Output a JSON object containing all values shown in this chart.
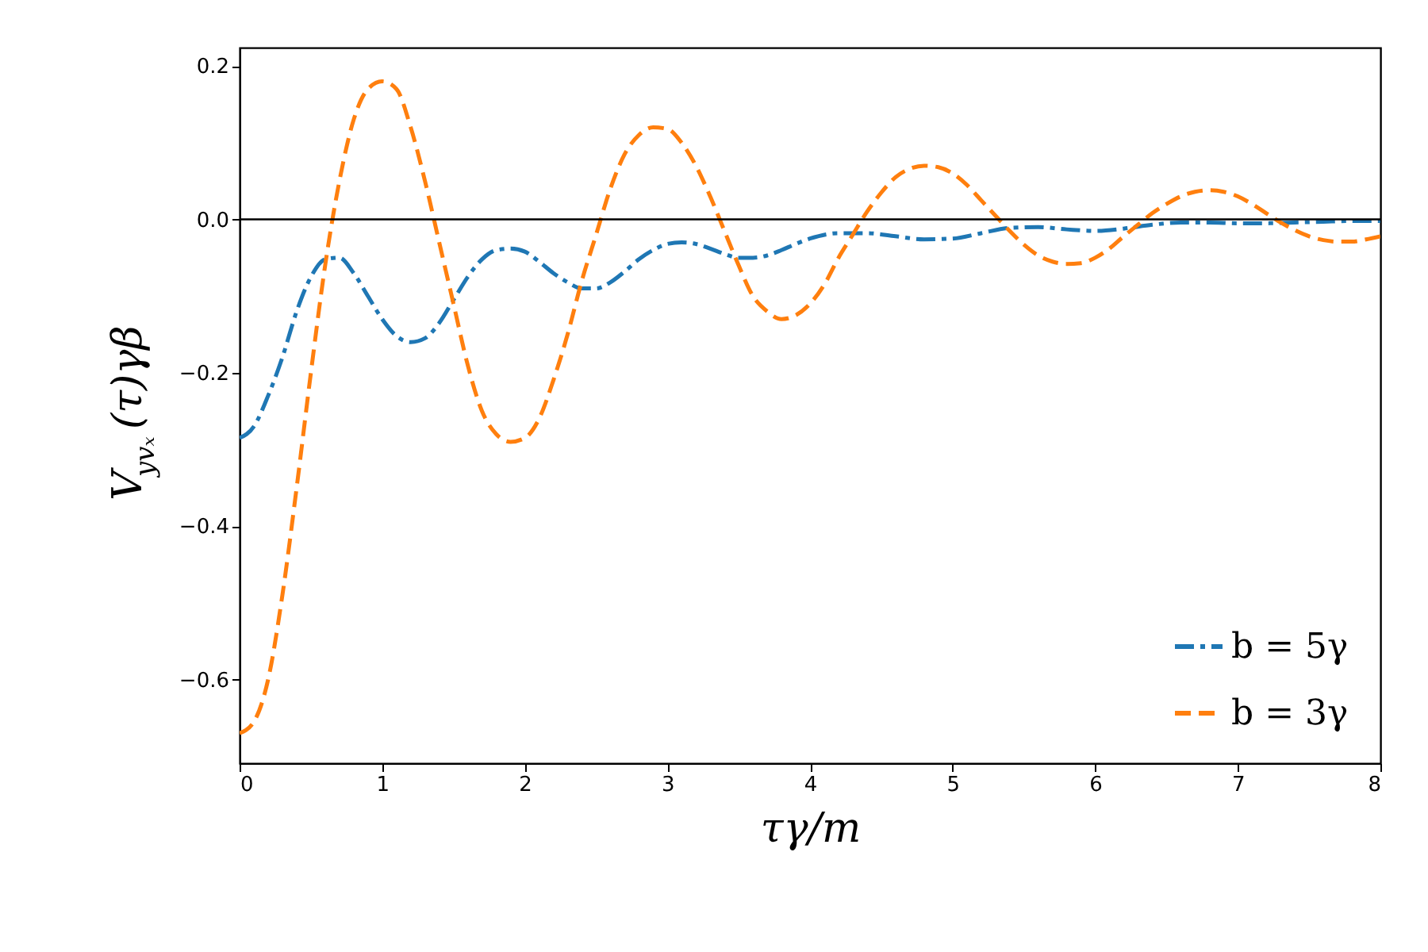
{
  "chart_data": {
    "type": "line",
    "xlabel": "τγ/m",
    "ylabel": "V$_{yvₓ}$(τ)γβ",
    "xlim": [
      0,
      8
    ],
    "xticks": [
      0,
      1,
      2,
      3,
      4,
      5,
      6,
      7,
      8
    ],
    "ylim": [
      -0.709,
      0.224
    ],
    "yticks": [
      {
        "value": -0.6,
        "label": "−0.6"
      },
      {
        "value": -0.4,
        "label": "−0.4"
      },
      {
        "value": -0.2,
        "label": "−0.2"
      },
      {
        "value": 0,
        "label": "0.0"
      },
      {
        "value": 0.2,
        "label": "0.2"
      }
    ],
    "grid": false,
    "legend": "bottom right",
    "ref_lines": [
      {
        "axis": "y",
        "value": 0,
        "color": "#000000"
      }
    ],
    "series": [
      {
        "name": "b = 5γ",
        "color": "#1f77b4",
        "line_style": "dashdot",
        "x": [
          0,
          0.1,
          0.2,
          0.3,
          0.4,
          0.5,
          0.6,
          0.7,
          0.8,
          0.9,
          1.0,
          1.1,
          1.2,
          1.3,
          1.4,
          1.5,
          1.6,
          1.7,
          1.8,
          1.9,
          2.0,
          2.1,
          2.2,
          2.3,
          2.4,
          2.5,
          2.6,
          2.7,
          2.8,
          2.9,
          3.0,
          3.1,
          3.2,
          3.3,
          3.4,
          3.5,
          3.6,
          3.7,
          3.8,
          3.9,
          4.0,
          4.2,
          4.4,
          4.6,
          4.8,
          5.0,
          5.2,
          5.4,
          5.6,
          5.8,
          6.0,
          6.2,
          6.4,
          6.6,
          6.8,
          7.0,
          7.2,
          7.4,
          7.6,
          7.8,
          8.0
        ],
        "values": [
          -0.285,
          -0.27,
          -0.23,
          -0.18,
          -0.12,
          -0.075,
          -0.052,
          -0.05,
          -0.07,
          -0.1,
          -0.13,
          -0.152,
          -0.16,
          -0.155,
          -0.135,
          -0.105,
          -0.075,
          -0.052,
          -0.04,
          -0.038,
          -0.042,
          -0.055,
          -0.07,
          -0.082,
          -0.09,
          -0.09,
          -0.082,
          -0.068,
          -0.052,
          -0.04,
          -0.032,
          -0.03,
          -0.032,
          -0.038,
          -0.045,
          -0.05,
          -0.05,
          -0.047,
          -0.04,
          -0.032,
          -0.025,
          -0.018,
          -0.018,
          -0.022,
          -0.026,
          -0.025,
          -0.018,
          -0.011,
          -0.01,
          -0.013,
          -0.015,
          -0.012,
          -0.007,
          -0.004,
          -0.004,
          -0.005,
          -0.005,
          -0.004,
          -0.003,
          -0.002,
          -0.002
        ]
      },
      {
        "name": "b = 3γ",
        "color": "#ff7f0e",
        "line_style": "dashed",
        "x": [
          0,
          0.1,
          0.2,
          0.3,
          0.4,
          0.5,
          0.6,
          0.7,
          0.8,
          0.9,
          1.0,
          1.1,
          1.2,
          1.3,
          1.4,
          1.5,
          1.6,
          1.7,
          1.8,
          1.9,
          2.0,
          2.1,
          2.2,
          2.3,
          2.4,
          2.5,
          2.6,
          2.7,
          2.8,
          2.9,
          3.0,
          3.1,
          3.2,
          3.3,
          3.4,
          3.5,
          3.6,
          3.7,
          3.8,
          3.9,
          4.0,
          4.1,
          4.2,
          4.3,
          4.4,
          4.5,
          4.6,
          4.7,
          4.8,
          4.9,
          5.0,
          5.1,
          5.2,
          5.3,
          5.4,
          5.5,
          5.6,
          5.7,
          5.8,
          5.9,
          6.0,
          6.1,
          6.2,
          6.3,
          6.4,
          6.5,
          6.6,
          6.7,
          6.8,
          6.9,
          7.0,
          7.1,
          7.2,
          7.3,
          7.4,
          7.5,
          7.6,
          7.7,
          7.8,
          7.9,
          8.0
        ],
        "values": [
          -0.67,
          -0.655,
          -0.6,
          -0.49,
          -0.35,
          -0.2,
          -0.06,
          0.05,
          0.13,
          0.17,
          0.18,
          0.17,
          0.12,
          0.05,
          -0.03,
          -0.11,
          -0.19,
          -0.25,
          -0.28,
          -0.29,
          -0.285,
          -0.26,
          -0.21,
          -0.15,
          -0.08,
          -0.02,
          0.04,
          0.085,
          0.11,
          0.12,
          0.118,
          0.1,
          0.07,
          0.03,
          -0.015,
          -0.06,
          -0.1,
          -0.12,
          -0.13,
          -0.125,
          -0.11,
          -0.085,
          -0.05,
          -0.02,
          0.01,
          0.035,
          0.055,
          0.066,
          0.07,
          0.068,
          0.06,
          0.045,
          0.025,
          0.005,
          -0.015,
          -0.033,
          -0.047,
          -0.055,
          -0.058,
          -0.057,
          -0.05,
          -0.038,
          -0.022,
          -0.007,
          0.008,
          0.02,
          0.03,
          0.036,
          0.038,
          0.036,
          0.03,
          0.02,
          0.008,
          -0.004,
          -0.014,
          -0.022,
          -0.027,
          -0.029,
          -0.029,
          -0.026,
          -0.022
        ]
      }
    ]
  }
}
